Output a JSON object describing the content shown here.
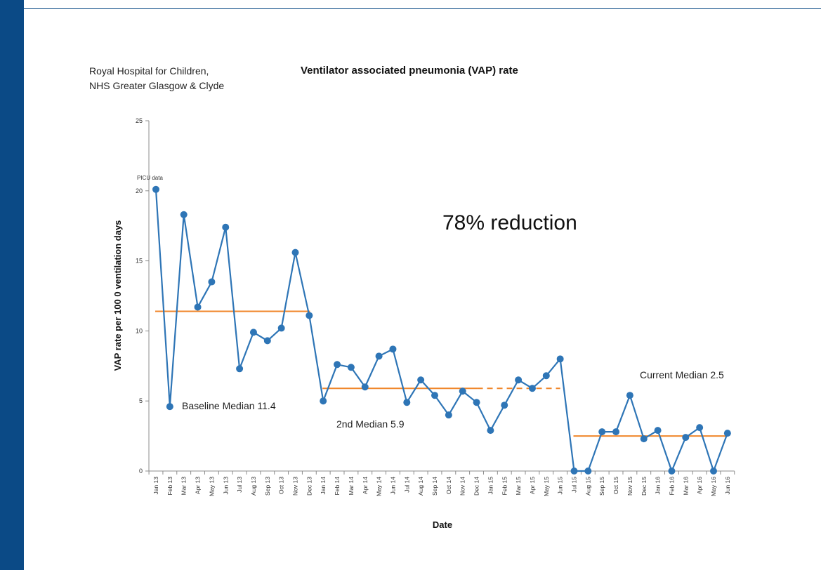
{
  "header": {
    "org_line1": "Royal Hospital for Children,",
    "org_line2": "NHS Greater Glasgow & Clyde"
  },
  "chart_data": {
    "type": "line",
    "title": "Ventilator associated pneumonia (VAP) rate",
    "xlabel": "Date",
    "ylabel": "VAP rate per 100 0 ventilation days",
    "ylim": [
      0,
      25
    ],
    "yticks": [
      0,
      5,
      10,
      15,
      20,
      25
    ],
    "grid": false,
    "legend": "none",
    "categories": [
      "Jan 13",
      "Feb 13",
      "Mar 13",
      "Apr 13",
      "May 13",
      "Jun 13",
      "Jul 13",
      "Aug 13",
      "Sep 13",
      "Oct 13",
      "Nov 13",
      "Dec 13",
      "Jan 14",
      "Feb 14",
      "Mar 14",
      "Apr 14",
      "May 14",
      "Jun 14",
      "Jul 14",
      "Aug 14",
      "Sep 14",
      "Oct 14",
      "Nov 14",
      "Dec 14",
      "Jan 15",
      "Feb 15",
      "Mar 15",
      "Apr 15",
      "May 15",
      "Jun 15",
      "Jul 15",
      "Aug 15",
      "Sep 15",
      "Oct 15",
      "Nov 15",
      "Dec 15",
      "Jan 16",
      "Feb 16",
      "Mar 16",
      "Apr 16",
      "May 16",
      "Jun 16"
    ],
    "series": [
      {
        "color": "#2e75b6",
        "values": [
          20.1,
          4.6,
          18.3,
          11.7,
          13.5,
          17.4,
          7.3,
          9.9,
          9.3,
          10.2,
          15.6,
          11.1,
          5.0,
          7.6,
          7.4,
          6.0,
          8.2,
          8.7,
          4.9,
          6.5,
          5.4,
          4.0,
          5.7,
          4.9,
          2.9,
          4.7,
          6.5,
          5.9,
          6.8,
          8.0,
          0.0,
          0.0,
          2.8,
          2.8,
          5.4,
          2.3,
          2.9,
          0.0,
          2.4,
          3.1,
          0.0,
          2.7
        ]
      }
    ],
    "medians": [
      {
        "label": "Baseline Median 11.4",
        "value": 11.4,
        "from": "Jan 13",
        "to": "Dec 13",
        "color": "#f0862a"
      },
      {
        "label": "2nd Median 5.9",
        "value": 5.9,
        "from": "Jan 14",
        "to": "Dec 14",
        "extended_dashed_to": "Jun 15",
        "color": "#f0862a"
      },
      {
        "label": "Current Median 2.5",
        "value": 2.5,
        "from": "Jul 15",
        "to": "Jun 16",
        "color": "#f0862a"
      }
    ],
    "annotations": [
      {
        "text": "PICU data",
        "at": "Jan 13"
      },
      {
        "text": "78% reduction"
      }
    ]
  }
}
